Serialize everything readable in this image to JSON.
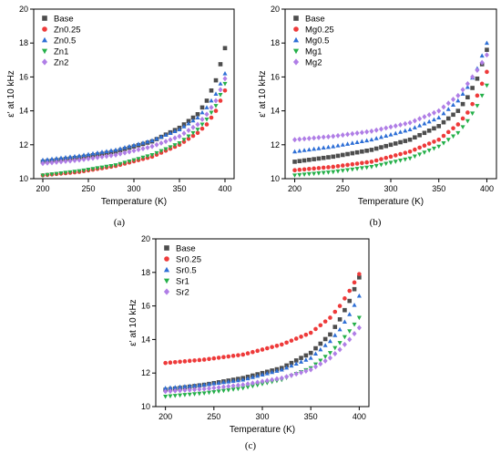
{
  "panels": [
    {
      "caption": "(a)",
      "chart_data": {
        "type": "scatter",
        "xlabel": "Temperature (K)",
        "ylabel": "ε' at 10 kHz",
        "xlim": [
          190,
          410
        ],
        "ylim": [
          10,
          20
        ],
        "xticks": [
          200,
          250,
          300,
          350,
          400
        ],
        "yticks": [
          10,
          12,
          14,
          16,
          18,
          20
        ],
        "grid": false,
        "legend": "top-left",
        "series": [
          {
            "name": "Base",
            "color": "#4d4d4d",
            "marker": "square",
            "at400": 17.7,
            "x": [
              200,
              240,
              280,
              320,
              350,
              370,
              380,
              390,
              400
            ],
            "y": [
              11.0,
              11.25,
              11.6,
              12.2,
              13.0,
              13.8,
              14.6,
              15.8,
              17.7
            ]
          },
          {
            "name": "Zn0.25",
            "color": "#ee3a3a",
            "marker": "circle",
            "at400": 15.2,
            "x": [
              200,
              240,
              280,
              320,
              350,
              370,
              380,
              390,
              400
            ],
            "y": [
              10.2,
              10.4,
              10.75,
              11.3,
              12.0,
              12.7,
              13.2,
              14.0,
              15.2
            ]
          },
          {
            "name": "Zn0.5",
            "color": "#2e6fd6",
            "marker": "triangle-up",
            "at400": 16.2,
            "x": [
              200,
              240,
              280,
              320,
              350,
              370,
              380,
              390,
              400
            ],
            "y": [
              11.1,
              11.35,
              11.7,
              12.25,
              12.9,
              13.6,
              14.2,
              15.0,
              16.2
            ]
          },
          {
            "name": "Zn1",
            "color": "#25b04a",
            "marker": "triangle-down",
            "at400": 15.6,
            "x": [
              200,
              240,
              280,
              320,
              350,
              370,
              380,
              390,
              400
            ],
            "y": [
              10.2,
              10.45,
              10.8,
              11.4,
              12.1,
              12.9,
              13.5,
              14.3,
              15.6
            ]
          },
          {
            "name": "Zn2",
            "color": "#b07ee6",
            "marker": "diamond",
            "at400": 15.9,
            "x": [
              200,
              240,
              280,
              320,
              350,
              370,
              380,
              390,
              400
            ],
            "y": [
              10.9,
              11.1,
              11.4,
              11.9,
              12.5,
              13.2,
              13.8,
              14.6,
              15.9
            ]
          }
        ]
      }
    },
    {
      "caption": "(b)",
      "chart_data": {
        "type": "scatter",
        "xlabel": "Temperature (K)",
        "ylabel": "ε' at 10 kHz",
        "xlim": [
          190,
          410
        ],
        "ylim": [
          10,
          20
        ],
        "xticks": [
          200,
          250,
          300,
          350,
          400
        ],
        "yticks": [
          10,
          12,
          14,
          16,
          18,
          20
        ],
        "grid": false,
        "legend": "top-left",
        "series": [
          {
            "name": "Base",
            "color": "#4d4d4d",
            "marker": "square",
            "at400": 17.6,
            "x": [
              200,
              240,
              280,
              320,
              350,
              370,
              380,
              390,
              400
            ],
            "y": [
              11.0,
              11.3,
              11.7,
              12.3,
              13.1,
              14.0,
              14.8,
              15.9,
              17.6
            ]
          },
          {
            "name": "Mg0.25",
            "color": "#ee3a3a",
            "marker": "circle",
            "at400": 16.3,
            "x": [
              200,
              240,
              280,
              320,
              350,
              370,
              380,
              390,
              400
            ],
            "y": [
              10.5,
              10.7,
              11.0,
              11.6,
              12.3,
              13.2,
              13.9,
              14.9,
              16.3
            ]
          },
          {
            "name": "Mg0.5",
            "color": "#2e6fd6",
            "marker": "triangle-up",
            "at400": 18.0,
            "x": [
              200,
              240,
              280,
              320,
              350,
              370,
              380,
              390,
              400
            ],
            "y": [
              11.6,
              11.9,
              12.3,
              12.9,
              13.6,
              14.6,
              15.4,
              16.5,
              18.0
            ]
          },
          {
            "name": "Mg1",
            "color": "#25b04a",
            "marker": "triangle-down",
            "at400": 15.5,
            "x": [
              200,
              240,
              280,
              320,
              350,
              370,
              380,
              390,
              400
            ],
            "y": [
              10.2,
              10.4,
              10.7,
              11.2,
              11.9,
              12.7,
              13.4,
              14.3,
              15.5
            ]
          },
          {
            "name": "Mg2",
            "color": "#b07ee6",
            "marker": "diamond",
            "at400": 17.3,
            "x": [
              200,
              240,
              280,
              320,
              350,
              370,
              380,
              390,
              400
            ],
            "y": [
              12.3,
              12.5,
              12.8,
              13.3,
              14.0,
              14.9,
              15.6,
              16.4,
              17.3
            ]
          }
        ]
      }
    },
    {
      "caption": "(c)",
      "chart_data": {
        "type": "scatter",
        "xlabel": "Temperature (K)",
        "ylabel": "ε' at 10 kHz",
        "xlim": [
          190,
          410
        ],
        "ylim": [
          10,
          20
        ],
        "xticks": [
          200,
          250,
          300,
          350,
          400
        ],
        "yticks": [
          10,
          12,
          14,
          16,
          18,
          20
        ],
        "grid": false,
        "legend": "top-left",
        "series": [
          {
            "name": "Base",
            "color": "#4d4d4d",
            "marker": "square",
            "at400": 17.7,
            "x": [
              200,
              240,
              280,
              320,
              350,
              370,
              380,
              390,
              400
            ],
            "y": [
              11.0,
              11.3,
              11.7,
              12.3,
              13.2,
              14.3,
              15.2,
              16.3,
              17.7
            ]
          },
          {
            "name": "Sr0.25",
            "color": "#ee3a3a",
            "marker": "circle",
            "at400": 17.9,
            "x": [
              200,
              240,
              280,
              320,
              350,
              370,
              380,
              390,
              400
            ],
            "y": [
              12.6,
              12.8,
              13.1,
              13.7,
              14.4,
              15.3,
              16.0,
              16.9,
              17.9
            ]
          },
          {
            "name": "Sr0.5",
            "color": "#2e6fd6",
            "marker": "triangle-up",
            "at400": 16.6,
            "x": [
              200,
              240,
              280,
              320,
              350,
              370,
              380,
              390,
              400
            ],
            "y": [
              11.1,
              11.3,
              11.6,
              12.2,
              12.9,
              13.9,
              14.6,
              15.5,
              16.6
            ]
          },
          {
            "name": "Sr1",
            "color": "#25b04a",
            "marker": "triangle-down",
            "at400": 15.3,
            "x": [
              200,
              240,
              280,
              320,
              350,
              370,
              380,
              390,
              400
            ],
            "y": [
              10.6,
              10.8,
              11.1,
              11.6,
              12.3,
              13.2,
              13.8,
              14.5,
              15.3
            ]
          },
          {
            "name": "Sr2",
            "color": "#b07ee6",
            "marker": "diamond",
            "at400": 14.7,
            "x": [
              200,
              240,
              280,
              320,
              350,
              370,
              380,
              390,
              400
            ],
            "y": [
              10.9,
              11.05,
              11.3,
              11.7,
              12.2,
              12.9,
              13.4,
              14.0,
              14.7
            ]
          }
        ]
      }
    }
  ]
}
